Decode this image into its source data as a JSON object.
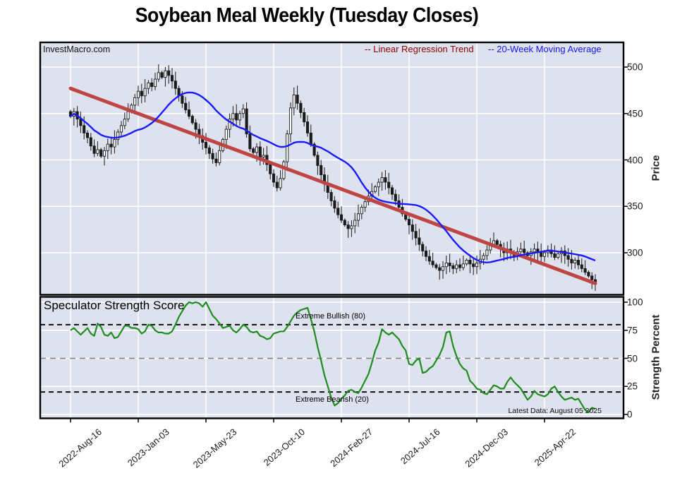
{
  "title": "Soybean Meal Weekly (Tuesday Closes)",
  "watermark": "InvestMacro.com",
  "legend": [
    {
      "label": "-- Linear Regression Trend",
      "color": "#8b0000"
    },
    {
      "label": "-- 20-Week Moving Average",
      "color": "#1616ee"
    }
  ],
  "price_panel": {
    "axis_label": "Price",
    "yticks": [
      500,
      450,
      400,
      350,
      300
    ]
  },
  "strength_panel": {
    "title": "Speculator Strength Score",
    "axis_label": "Strength Percent",
    "yticks": [
      100,
      75,
      50,
      25,
      0
    ],
    "bullish_label": "Extreme Bullish (80)",
    "bullish_level": 80,
    "bearish_label": "Extreme Bearish (20)",
    "bearish_level": 20,
    "midline_level": 50,
    "note": "Latest Data: August 05 2025"
  },
  "x_axis": {
    "tick_labels": [
      "2022-Aug-16",
      "2023-Jan-03",
      "2023-May-23",
      "2023-Oct-10",
      "2024-Feb-27",
      "2024-Jul-16",
      "2024-Dec-03",
      "2025-Apr-22"
    ],
    "tick_weeks": [
      0,
      20,
      40,
      60,
      80,
      100,
      120,
      140
    ]
  },
  "colors": {
    "panel_bg": "#dde2ee",
    "grid": "#ffffff",
    "trend_line": "#bf4545",
    "ma_line": "#1a1aff",
    "strength_line": "#1f8c1f",
    "candle_up_fill": "#ffffff",
    "candle_down_fill": "#1a1a1a",
    "candle_stroke": "#1a1a1a",
    "threshold_dash": "#000000",
    "midline_dash": "#808080",
    "border": "#000000"
  },
  "chart_data": {
    "type": "candlestick",
    "weeks": 156,
    "first_open": 452,
    "closes": [
      447,
      452,
      444,
      437,
      429,
      424,
      415,
      407,
      411,
      404,
      410,
      417,
      414,
      422,
      430,
      437,
      444,
      452,
      459,
      467,
      474,
      469,
      477,
      483,
      479,
      487,
      494,
      489,
      496,
      491,
      485,
      477,
      469,
      461,
      454,
      447,
      440,
      433,
      426,
      419,
      413,
      407,
      401,
      397,
      410,
      422,
      433,
      444,
      450,
      443,
      450,
      455,
      428,
      412,
      408,
      414,
      403,
      405,
      395,
      385,
      376,
      370,
      380,
      398,
      428,
      456,
      470,
      461,
      451,
      441,
      429,
      417,
      405,
      394,
      384,
      374,
      365,
      356,
      348,
      341,
      335,
      330,
      326,
      329,
      335,
      342,
      349,
      355,
      361,
      366,
      371,
      376,
      381,
      376,
      370,
      363,
      356,
      349,
      342,
      336,
      330,
      323,
      316,
      309,
      302,
      296,
      291,
      287,
      284,
      281,
      285,
      289,
      286,
      283,
      287,
      284,
      288,
      292,
      288,
      285,
      289,
      293,
      297,
      303,
      309,
      313,
      309,
      305,
      300,
      304,
      300,
      297,
      301,
      304,
      300,
      297,
      301,
      304,
      300,
      296,
      300,
      303,
      299,
      295,
      299,
      302,
      297,
      293,
      289,
      292,
      287,
      283,
      279,
      275,
      271,
      268
    ],
    "ma_window": 20,
    "trend": {
      "start_price": 477,
      "end_price": 267
    },
    "price_ylim": [
      255,
      526
    ],
    "strength": {
      "type": "line",
      "ylim": [
        0,
        100
      ],
      "values": [
        75,
        77,
        74,
        71,
        74,
        77,
        72,
        70,
        81,
        78,
        71,
        70,
        73,
        68,
        69,
        74,
        79,
        79,
        77,
        77,
        76,
        72,
        74,
        80,
        79,
        75,
        73,
        73,
        72,
        72,
        74,
        80,
        87,
        92,
        97,
        100,
        99,
        100,
        99,
        96,
        100,
        94,
        88,
        85,
        81,
        77,
        78,
        79,
        75,
        73,
        76,
        80,
        78,
        74,
        73,
        74,
        70,
        69,
        67,
        68,
        72,
        73,
        74,
        74,
        78,
        83,
        88,
        91,
        93,
        94,
        95,
        85,
        74,
        60,
        48,
        35,
        25,
        15,
        8,
        10,
        14,
        17,
        21,
        22,
        20,
        19,
        24,
        30,
        36,
        46,
        57,
        64,
        76,
        73,
        71,
        73,
        70,
        67,
        61,
        57,
        45,
        44,
        48,
        50,
        37,
        38,
        41,
        43,
        48,
        53,
        60,
        73,
        74,
        61,
        52,
        45,
        41,
        39,
        30,
        27,
        23,
        22,
        19,
        18,
        22,
        26,
        25,
        23,
        23,
        29,
        33,
        29,
        26,
        23,
        18,
        13,
        16,
        21,
        18,
        17,
        16,
        18,
        23,
        25,
        20,
        16,
        13,
        14,
        15,
        13,
        14,
        9,
        4,
        2,
        6,
        5
      ]
    }
  }
}
